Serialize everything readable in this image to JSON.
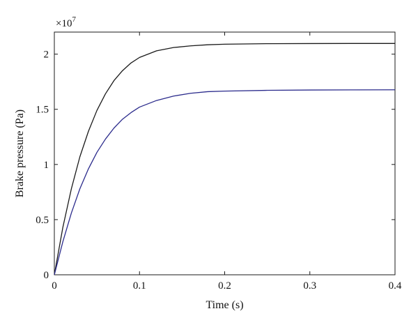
{
  "chart_data": {
    "type": "line",
    "title": "",
    "xlabel": "Time (s)",
    "ylabel": "Brake pressure (Pa)",
    "xlim": [
      0,
      0.4
    ],
    "ylim": [
      0,
      22000000
    ],
    "x_ticks": [
      0,
      0.1,
      0.2,
      0.3,
      0.4
    ],
    "x_tick_labels": [
      "0",
      "0.1",
      "0.2",
      "0.3",
      "0.4"
    ],
    "y_ticks": [
      0,
      5000000,
      10000000,
      15000000,
      20000000
    ],
    "y_tick_labels": [
      "0",
      "0.5",
      "1",
      "1.5",
      "2"
    ],
    "y_multiplier_label": "×10",
    "y_multiplier_exponent": "7",
    "grid": false,
    "legend": "none",
    "series": [
      {
        "color": "#1a1a1a",
        "x": [
          0,
          0.01,
          0.02,
          0.03,
          0.04,
          0.05,
          0.06,
          0.07,
          0.08,
          0.09,
          0.1,
          0.12,
          0.14,
          0.16,
          0.18,
          0.2,
          0.25,
          0.3,
          0.35,
          0.4
        ],
        "values": [
          0,
          4300000,
          7800000,
          10700000,
          13000000,
          14900000,
          16400000,
          17600000,
          18500000,
          19200000,
          19700000,
          20300000,
          20600000,
          20750000,
          20850000,
          20900000,
          20950000,
          20960000,
          20970000,
          20970000
        ]
      },
      {
        "color": "#2b2b8c",
        "x": [
          0,
          0.01,
          0.02,
          0.03,
          0.04,
          0.05,
          0.06,
          0.07,
          0.08,
          0.09,
          0.1,
          0.12,
          0.14,
          0.16,
          0.18,
          0.2,
          0.25,
          0.3,
          0.35,
          0.4
        ],
        "values": [
          0,
          3000000,
          5600000,
          7800000,
          9600000,
          11100000,
          12300000,
          13300000,
          14100000,
          14700000,
          15200000,
          15800000,
          16200000,
          16450000,
          16600000,
          16650000,
          16720000,
          16750000,
          16760000,
          16770000
        ]
      }
    ]
  }
}
